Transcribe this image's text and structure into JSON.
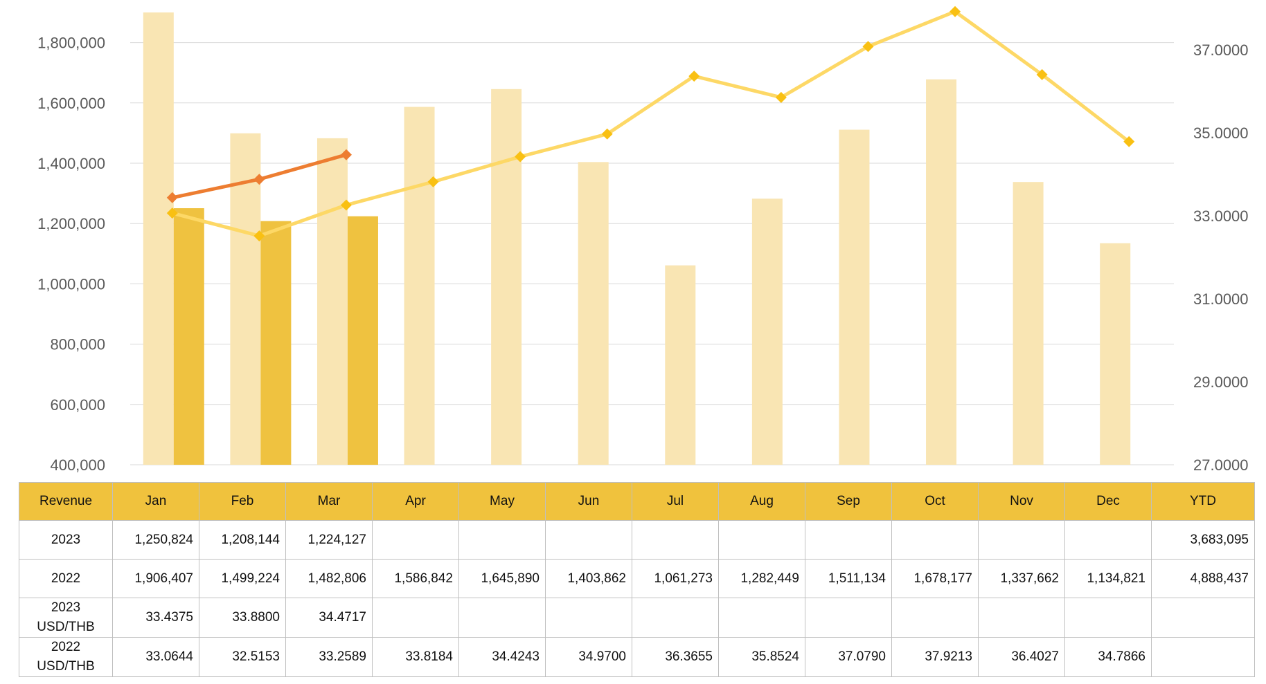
{
  "chart_data": {
    "type": "bar+line",
    "categories": [
      "Jan",
      "Feb",
      "Mar",
      "Apr",
      "May",
      "Jun",
      "Jul",
      "Aug",
      "Sep",
      "Oct",
      "Nov",
      "Dec"
    ],
    "y_left": {
      "ticks": [
        "400,000",
        "600,000",
        "800,000",
        "1,000,000",
        "1,200,000",
        "1,400,000",
        "1,600,000",
        "1,800,000"
      ],
      "min": 400000,
      "max": 1900000
    },
    "y_right": {
      "ticks": [
        "27.0000",
        "29.0000",
        "31.0000",
        "33.0000",
        "35.0000",
        "37.0000"
      ],
      "min": 27,
      "max": 37.9
    },
    "bars_2022": [
      1906407,
      1499224,
      1482806,
      1586842,
      1645890,
      1403862,
      1061273,
      1282449,
      1511134,
      1678177,
      1337662,
      1134821
    ],
    "bars_2023": [
      1250824,
      1208144,
      1224127
    ],
    "line_2022": [
      33.0644,
      32.5153,
      33.2589,
      33.8184,
      34.4243,
      34.97,
      36.3655,
      35.8524,
      37.079,
      37.9213,
      36.4027,
      34.7866
    ],
    "line_2023": [
      33.4375,
      33.88,
      34.4717
    ],
    "colors": {
      "bar_2022": "#f9e5b3",
      "bar_2023": "#efc240",
      "line_2022": "#fdd866",
      "marker_2022": "#f9c012",
      "line_2023": "#ed7d31",
      "grid": "#d9d9d9"
    }
  },
  "table": {
    "header": [
      "Revenue",
      "Jan",
      "Feb",
      "Mar",
      "Apr",
      "May",
      "Jun",
      "Jul",
      "Aug",
      "Sep",
      "Oct",
      "Nov",
      "Dec",
      "YTD"
    ],
    "rows": [
      {
        "label": [
          "2023"
        ],
        "cells": [
          "1,250,824",
          "1,208,144",
          "1,224,127",
          "",
          "",
          "",
          "",
          "",
          "",
          "",
          "",
          ""
        ],
        "ytd": "3,683,095"
      },
      {
        "label": [
          "2022"
        ],
        "cells": [
          "1,906,407",
          "1,499,224",
          "1,482,806",
          "1,586,842",
          "1,645,890",
          "1,403,862",
          "1,061,273",
          "1,282,449",
          "1,511,134",
          "1,678,177",
          "1,337,662",
          "1,134,821"
        ],
        "ytd": "4,888,437"
      },
      {
        "label": [
          "2023",
          "USD/THB"
        ],
        "cells": [
          "33.4375",
          "33.8800",
          "34.4717",
          "",
          "",
          "",
          "",
          "",
          "",
          "",
          "",
          ""
        ],
        "ytd": ""
      },
      {
        "label": [
          "2022",
          "USD/THB"
        ],
        "cells": [
          "33.0644",
          "32.5153",
          "33.2589",
          "33.8184",
          "34.4243",
          "34.9700",
          "36.3655",
          "35.8524",
          "37.0790",
          "37.9213",
          "36.4027",
          "34.7866"
        ],
        "ytd": ""
      }
    ]
  }
}
